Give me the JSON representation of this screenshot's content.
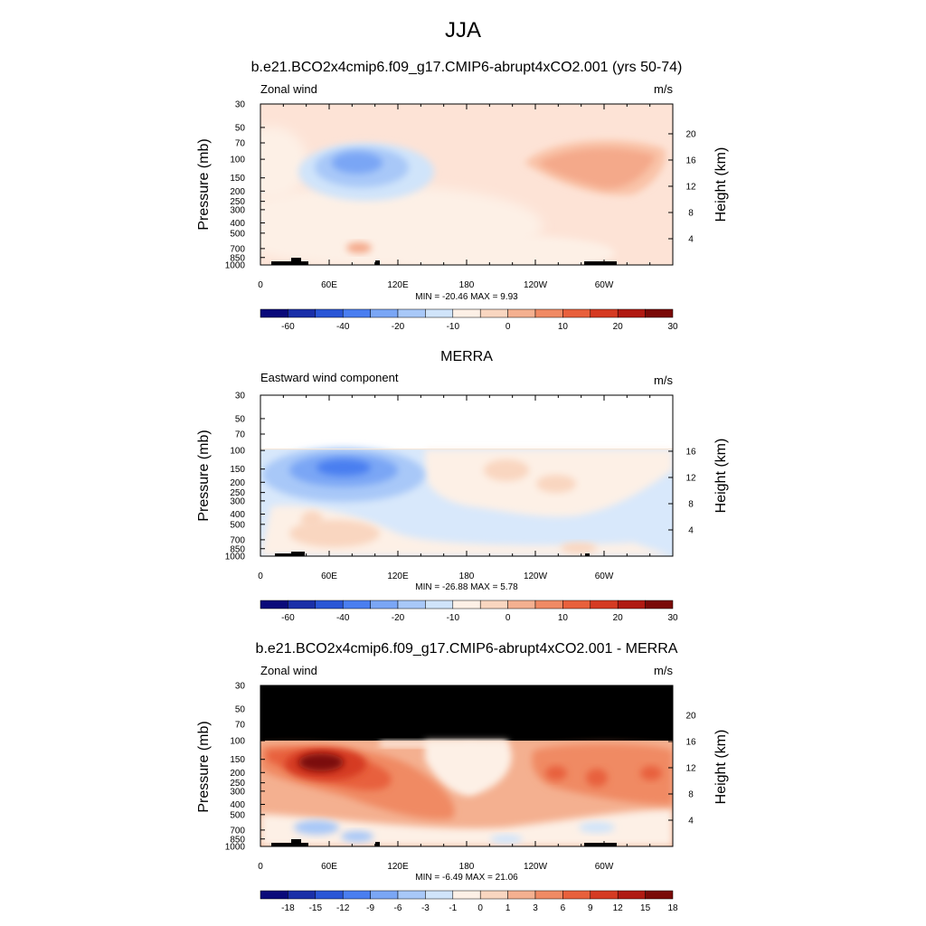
{
  "figure": {
    "title": "JJA"
  },
  "chart_data": [
    {
      "type": "heatmap",
      "title": "b.e21.BCO2x4cmip6.f09_g17.CMIP6-abrupt4xCO2.001 (yrs 50-74)",
      "left_label": "Zonal wind",
      "units": "m/s",
      "ylabel": "Pressure (mb)",
      "ylabel_right": "Height (km)",
      "x_ticks": [
        "0",
        "60E",
        "120E",
        "180",
        "120W",
        "60W"
      ],
      "y_ticks": [
        "30",
        "50",
        "70",
        "100",
        "150",
        "200",
        "250",
        "300",
        "400",
        "500",
        "700",
        "850",
        "1000"
      ],
      "height_ticks": [
        "20",
        "16",
        "12",
        "8",
        "4"
      ],
      "min_max": "MIN = -20.46  MAX =   9.93",
      "colorbar_levels": [
        "-60",
        "-40",
        "-20",
        "-10",
        "0",
        "10",
        "20",
        "30"
      ],
      "background_color": "#fde3d6",
      "features": [
        {
          "kind": "blue-core",
          "lon": 85,
          "p": 100,
          "value": -20.46
        },
        {
          "kind": "red-core",
          "lon": 225,
          "p": 100,
          "value": 9.93
        },
        {
          "kind": "red-low",
          "lon": 80,
          "p": 700,
          "value": 6
        }
      ]
    },
    {
      "type": "heatmap",
      "title": "MERRA",
      "left_label": "Eastward wind component",
      "units": "m/s",
      "ylabel": "Pressure (mb)",
      "ylabel_right": "Height (km)",
      "x_ticks": [
        "0",
        "60E",
        "120E",
        "180",
        "120W",
        "60W"
      ],
      "y_ticks": [
        "30",
        "50",
        "70",
        "100",
        "150",
        "200",
        "250",
        "300",
        "400",
        "500",
        "700",
        "850",
        "1000"
      ],
      "height_ticks": [
        "16",
        "12",
        "8",
        "4"
      ],
      "min_max": "MIN = -26.88  MAX =   5.78",
      "colorbar_levels": [
        "-60",
        "-40",
        "-20",
        "-10",
        "0",
        "10",
        "20",
        "30"
      ],
      "top_pressure_with_data": 100,
      "features": [
        {
          "kind": "blue-core",
          "lon": 85,
          "p": 150,
          "value": -26.88
        },
        {
          "kind": "red-patch",
          "lon": 190,
          "p": 150,
          "value": 5.78
        }
      ]
    },
    {
      "type": "heatmap",
      "title": "b.e21.BCO2x4cmip6.f09_g17.CMIP6-abrupt4xCO2.001 - MERRA",
      "left_label": "Zonal wind",
      "units": "m/s",
      "ylabel": "Pressure (mb)",
      "ylabel_right": "Height (km)",
      "x_ticks": [
        "0",
        "60E",
        "120E",
        "180",
        "120W",
        "60W"
      ],
      "y_ticks": [
        "30",
        "50",
        "70",
        "100",
        "150",
        "200",
        "250",
        "300",
        "400",
        "500",
        "700",
        "850",
        "1000"
      ],
      "height_ticks": [
        "20",
        "16",
        "12",
        "8",
        "4"
      ],
      "min_max": "MIN = -6.49  MAX = 21.06",
      "colorbar_levels": [
        "-18",
        "-15",
        "-12",
        "-9",
        "-6",
        "-3",
        "-1",
        "0",
        "1",
        "3",
        "6",
        "9",
        "12",
        "15",
        "18"
      ],
      "top_pressure_with_data": 100,
      "features": [
        {
          "kind": "red-core",
          "lon": 50,
          "p": 150,
          "value": 21.06
        },
        {
          "kind": "blue-low",
          "lon": 40,
          "p": 700,
          "value": -6.49
        }
      ]
    }
  ],
  "colorbar_colors": [
    "#0a0a7a",
    "#1a2fa8",
    "#2a56d6",
    "#4a7ef0",
    "#7aa6f5",
    "#a8c8f8",
    "#d0e4fa",
    "#fdf0e6",
    "#f9d6c0",
    "#f4b090",
    "#f08a64",
    "#e8603c",
    "#d53a22",
    "#b01a12",
    "#7a0a08"
  ]
}
